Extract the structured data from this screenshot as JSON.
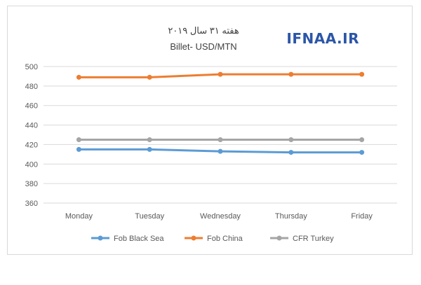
{
  "chart_data": {
    "type": "line",
    "title": "هفته ۳۱ سال ۲۰۱۹",
    "subtitle": "Billet- USD/MTN",
    "watermark": "IFNAA.IR",
    "categories": [
      "Monday",
      "Tuesday",
      "Wednesday",
      "Thursday",
      "Friday"
    ],
    "y_ticks": [
      "360",
      "380",
      "400",
      "420",
      "440",
      "460",
      "480",
      "500"
    ],
    "ylim": [
      360,
      500
    ],
    "grid": true,
    "legend_position": "bottom",
    "series": [
      {
        "name": "Fob Black Sea",
        "color": "#5b9bd5",
        "values": [
          415,
          415,
          413,
          412,
          412
        ]
      },
      {
        "name": "Fob China",
        "color": "#ed7d31",
        "values": [
          489,
          489,
          492,
          492,
          492
        ]
      },
      {
        "name": "CFR Turkey",
        "color": "#a5a5a5",
        "values": [
          425,
          425,
          425,
          425,
          425
        ]
      }
    ]
  }
}
